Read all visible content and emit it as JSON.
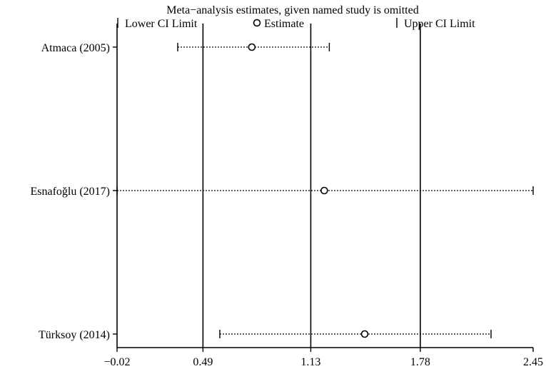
{
  "chart_data": {
    "type": "forest-influence",
    "title": "Meta−analysis estimates, given named study is omitted",
    "legend": {
      "placement": "top",
      "items": [
        {
          "marker": "bar",
          "label": "Lower CI Limit"
        },
        {
          "marker": "circle",
          "label": "Estimate"
        },
        {
          "marker": "bar",
          "label": "Upper CI Limit"
        }
      ]
    },
    "studies": [
      {
        "name": "Atmaca (2005)",
        "lower": 0.34,
        "estimate": 0.78,
        "upper": 1.24
      },
      {
        "name": "Esnafoğlu (2017)",
        "lower": -0.02,
        "estimate": 1.21,
        "upper": 2.45
      },
      {
        "name": "Türksoy (2014)",
        "lower": 0.59,
        "estimate": 1.45,
        "upper": 2.2
      }
    ],
    "x_ticks": [
      {
        "value": -0.02,
        "label": "−0.02"
      },
      {
        "value": 0.49,
        "label": "0.49"
      },
      {
        "value": 1.13,
        "label": "1.13"
      },
      {
        "value": 1.78,
        "label": "1.78"
      },
      {
        "value": 2.45,
        "label": "2.45"
      }
    ],
    "reference_lines": [
      0.49,
      1.13,
      1.78
    ],
    "xlim": [
      -0.02,
      2.45
    ],
    "xlabel": "",
    "ylabel": "",
    "grid": false
  }
}
